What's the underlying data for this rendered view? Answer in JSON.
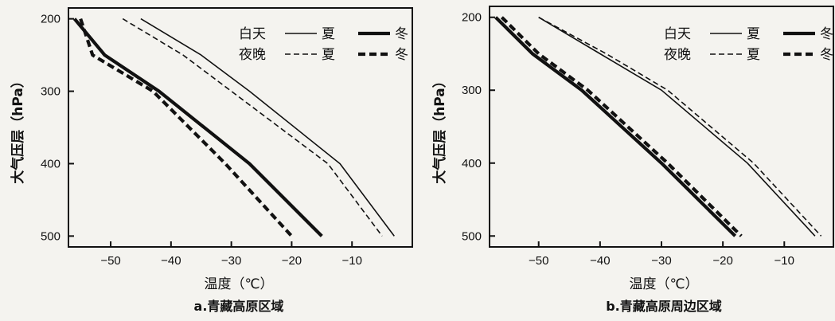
{
  "chart_data": [
    {
      "type": "line",
      "caption": "a.青藏高原区域",
      "xlabel": "温度（℃）",
      "ylabel": "大气压层（hPa）",
      "x_ticks": [
        -50,
        -40,
        -30,
        -20,
        -10
      ],
      "y_ticks": [
        200,
        300,
        400,
        500
      ],
      "xlim": [
        -57,
        0
      ],
      "ylim": [
        185,
        515
      ],
      "y_inverted": true,
      "legend_rows": [
        "白天",
        "夜晚"
      ],
      "legend_cols": [
        "夏",
        "冬"
      ],
      "series": [
        {
          "name": "白天 夏",
          "style": "thin-solid",
          "points": [
            [
              -45,
              200
            ],
            [
              -35,
              250
            ],
            [
              -27,
              300
            ],
            [
              -12,
              400
            ],
            [
              -3,
              500
            ]
          ]
        },
        {
          "name": "夜晚 夏",
          "style": "thin-dashed",
          "points": [
            [
              -48,
              200
            ],
            [
              -38,
              250
            ],
            [
              -30,
              300
            ],
            [
              -14,
              400
            ],
            [
              -5,
              500
            ]
          ]
        },
        {
          "name": "白天 冬",
          "style": "thick-solid",
          "points": [
            [
              -56,
              200
            ],
            [
              -51,
              250
            ],
            [
              -42,
              300
            ],
            [
              -27,
              400
            ],
            [
              -15,
              500
            ]
          ]
        },
        {
          "name": "夜晚 冬",
          "style": "thick-dashed",
          "points": [
            [
              -55,
              200
            ],
            [
              -53,
              250
            ],
            [
              -43,
              300
            ],
            [
              -31,
              400
            ],
            [
              -20,
              500
            ]
          ]
        }
      ]
    },
    {
      "type": "line",
      "caption": "b.青藏高原周边区域",
      "xlabel": "温度（℃）",
      "ylabel": "大气压层（hPa）",
      "x_ticks": [
        -50,
        -40,
        -30,
        -20,
        -10
      ],
      "y_ticks": [
        200,
        300,
        400,
        500
      ],
      "xlim": [
        -58,
        -2
      ],
      "ylim": [
        185,
        515
      ],
      "y_inverted": true,
      "legend_rows": [
        "白天",
        "夜晚"
      ],
      "legend_cols": [
        "夏",
        "冬"
      ],
      "series": [
        {
          "name": "白天 夏",
          "style": "thin-solid",
          "points": [
            [
              -50,
              200
            ],
            [
              -40,
              250
            ],
            [
              -30,
              300
            ],
            [
              -16,
              400
            ],
            [
              -5,
              500
            ]
          ]
        },
        {
          "name": "夜晚 夏",
          "style": "thin-dashed",
          "points": [
            [
              -50,
              200
            ],
            [
              -39,
              250
            ],
            [
              -29,
              300
            ],
            [
              -15,
              400
            ],
            [
              -4,
              500
            ]
          ]
        },
        {
          "name": "白天 冬",
          "style": "thick-solid",
          "points": [
            [
              -57,
              200
            ],
            [
              -51,
              250
            ],
            [
              -43,
              300
            ],
            [
              -30,
              400
            ],
            [
              -18,
              500
            ]
          ]
        },
        {
          "name": "夜晚 冬",
          "style": "thick-dashed",
          "points": [
            [
              -56,
              200
            ],
            [
              -50,
              250
            ],
            [
              -42,
              300
            ],
            [
              -29,
              400
            ],
            [
              -17,
              500
            ]
          ]
        }
      ]
    }
  ]
}
